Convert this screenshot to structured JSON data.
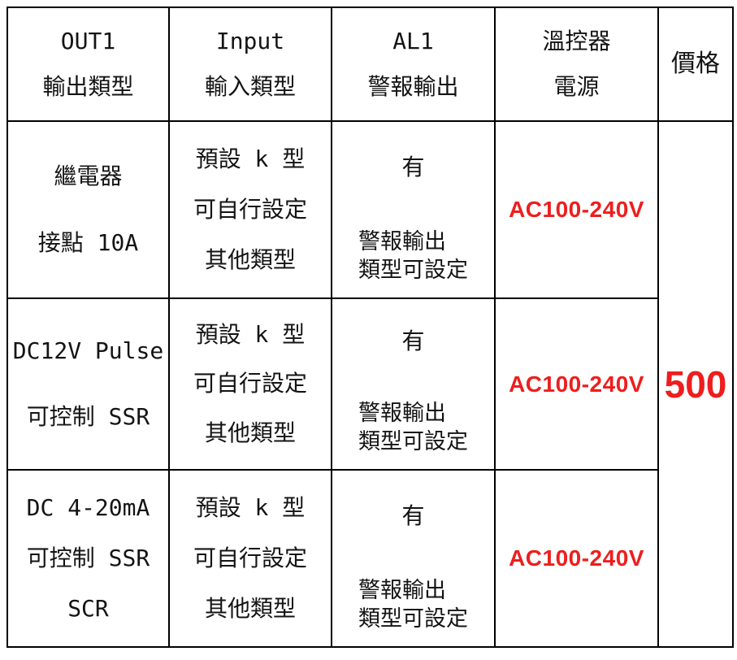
{
  "accent_red": "#ee1e1e",
  "border_color": "#000000",
  "header": {
    "out1_code": "OUT1",
    "out1_label": "輸出類型",
    "input_code": "Input",
    "input_label": "輸入類型",
    "al1_code": "AL1",
    "al1_label": "警報輸出",
    "power_line1": "溫控器",
    "power_line2": "電源",
    "price_label": "價格"
  },
  "rows": [
    {
      "output": [
        "繼電器",
        "接點 10A"
      ],
      "input": [
        "預設 k 型",
        "可自行設定",
        "其他類型"
      ],
      "alarm_status": "有",
      "alarm_note": [
        "警報輸出",
        "類型可設定"
      ],
      "power": "AC100-240V"
    },
    {
      "output": [
        "DC12V Pulse",
        "可控制 SSR"
      ],
      "input": [
        "預設 k 型",
        "可自行設定",
        "其他類型"
      ],
      "alarm_status": "有",
      "alarm_note": [
        "警報輸出",
        "類型可設定"
      ],
      "power": "AC100-240V"
    },
    {
      "output": [
        "DC 4-20mA",
        "可控制 SSR",
        "SCR"
      ],
      "input": [
        "預設 k 型",
        "可自行設定",
        "其他類型"
      ],
      "alarm_status": "有",
      "alarm_note": [
        "警報輸出",
        "類型可設定"
      ],
      "power": "AC100-240V"
    }
  ],
  "price": "500"
}
